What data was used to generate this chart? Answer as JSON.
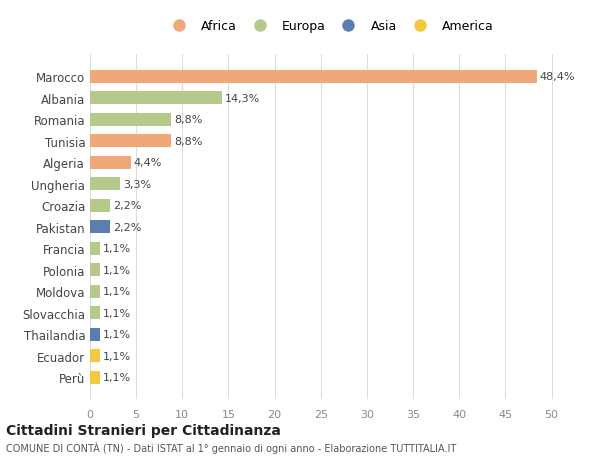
{
  "categories": [
    "Marocco",
    "Albania",
    "Romania",
    "Tunisia",
    "Algeria",
    "Ungheria",
    "Croazia",
    "Pakistan",
    "Francia",
    "Polonia",
    "Moldova",
    "Slovacchia",
    "Thailandia",
    "Ecuador",
    "Perù"
  ],
  "values": [
    48.4,
    14.3,
    8.8,
    8.8,
    4.4,
    3.3,
    2.2,
    2.2,
    1.1,
    1.1,
    1.1,
    1.1,
    1.1,
    1.1,
    1.1
  ],
  "labels": [
    "48,4%",
    "14,3%",
    "8,8%",
    "8,8%",
    "4,4%",
    "3,3%",
    "2,2%",
    "2,2%",
    "1,1%",
    "1,1%",
    "1,1%",
    "1,1%",
    "1,1%",
    "1,1%",
    "1,1%"
  ],
  "continents": [
    "Africa",
    "Europa",
    "Europa",
    "Africa",
    "Africa",
    "Europa",
    "Europa",
    "Asia",
    "Europa",
    "Europa",
    "Europa",
    "Europa",
    "Asia",
    "America",
    "America"
  ],
  "colors": {
    "Africa": "#F0A878",
    "Europa": "#B5C98A",
    "Asia": "#5B7DB1",
    "America": "#F5C842"
  },
  "legend_entries": [
    "Africa",
    "Europa",
    "Asia",
    "America"
  ],
  "xlim": [
    0,
    52
  ],
  "xticks": [
    0,
    5,
    10,
    15,
    20,
    25,
    30,
    35,
    40,
    45,
    50
  ],
  "title": "Cittadini Stranieri per Cittadinanza",
  "subtitle": "COMUNE DI CONTÀ (TN) - Dati ISTAT al 1° gennaio di ogni anno - Elaborazione TUTTITALIA.IT",
  "bg_color": "#ffffff",
  "grid_color": "#dddddd",
  "bar_height": 0.6
}
